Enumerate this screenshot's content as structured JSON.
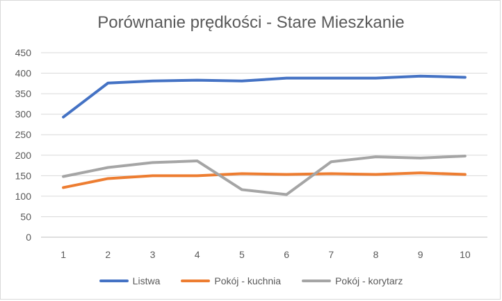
{
  "chart_data": {
    "type": "line",
    "title": "Porównanie prędkości - Stare Mieszkanie",
    "categories": [
      "1",
      "2",
      "3",
      "4",
      "5",
      "6",
      "7",
      "8",
      "9",
      "10"
    ],
    "ylim": [
      0,
      450
    ],
    "yticks": [
      "0",
      "50",
      "100",
      "150",
      "200",
      "250",
      "300",
      "350",
      "400",
      "450"
    ],
    "grid": true,
    "legend_position": "bottom",
    "series": [
      {
        "name": "Listwa",
        "color": "#4472C4",
        "values": [
          293,
          376,
          381,
          383,
          381,
          388,
          388,
          388,
          393,
          390
        ]
      },
      {
        "name": "Pokój - kuchnia",
        "color": "#ED7D31",
        "values": [
          121,
          143,
          150,
          150,
          155,
          153,
          155,
          153,
          157,
          153
        ]
      },
      {
        "name": "Pokój - korytarz",
        "color": "#A5A5A5",
        "values": [
          148,
          170,
          182,
          186,
          116,
          104,
          184,
          196,
          193,
          198
        ]
      }
    ]
  }
}
